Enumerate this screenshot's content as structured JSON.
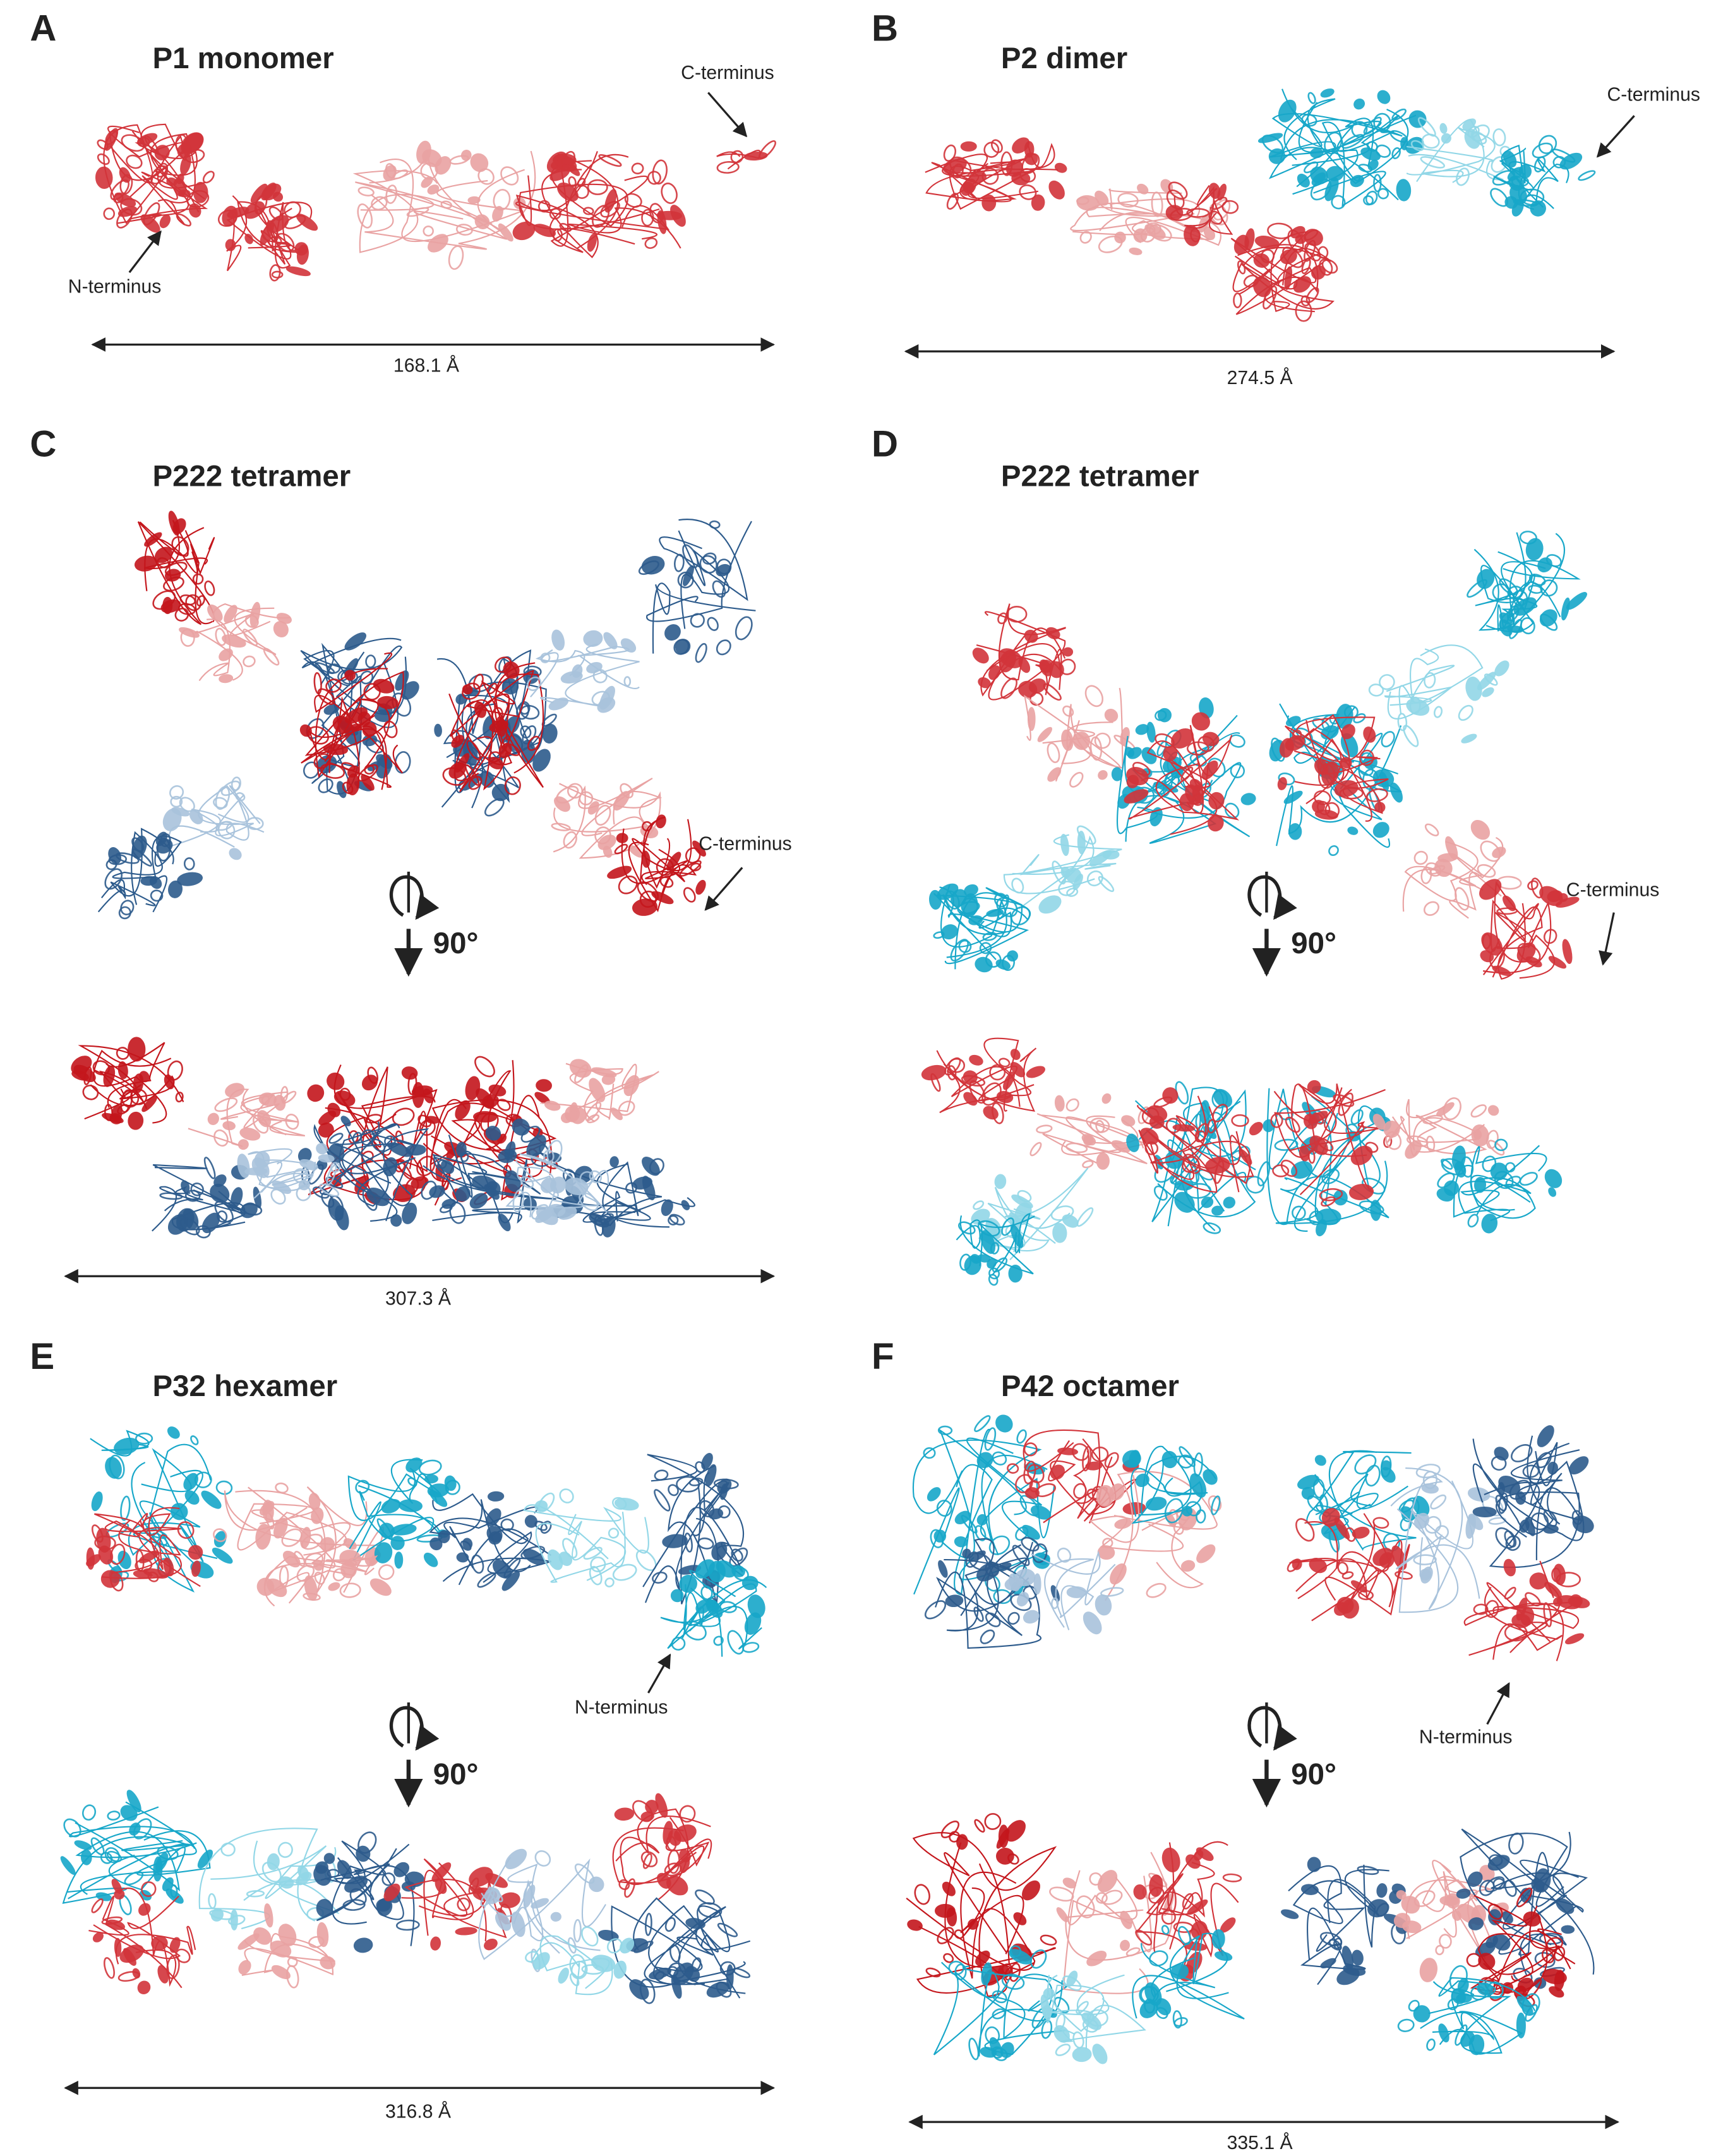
{
  "panels": [
    {
      "letter": "A",
      "title": "P1 monomer",
      "annotations": [
        "C-terminus",
        "N-terminus"
      ],
      "dimension": "168.1 Å"
    },
    {
      "letter": "B",
      "title": "P2 dimer",
      "annotations": [
        "C-terminus"
      ],
      "dimension": "274.5 Å"
    },
    {
      "letter": "C",
      "title": "P222 tetramer",
      "annotations": [
        "C-terminus"
      ],
      "rotation": "90°",
      "dimension": "307.3 Å"
    },
    {
      "letter": "D",
      "title": "P222 tetramer",
      "annotations": [
        "C-terminus"
      ],
      "rotation": "90°"
    },
    {
      "letter": "E",
      "title": "P32 hexamer",
      "annotations": [
        "N-terminus"
      ],
      "rotation": "90°",
      "dimension": "316.8 Å"
    },
    {
      "letter": "F",
      "title": "P42 octamer",
      "annotations": [
        "N-terminus"
      ],
      "rotation": "90°",
      "dimension": "335.1 Å"
    }
  ]
}
